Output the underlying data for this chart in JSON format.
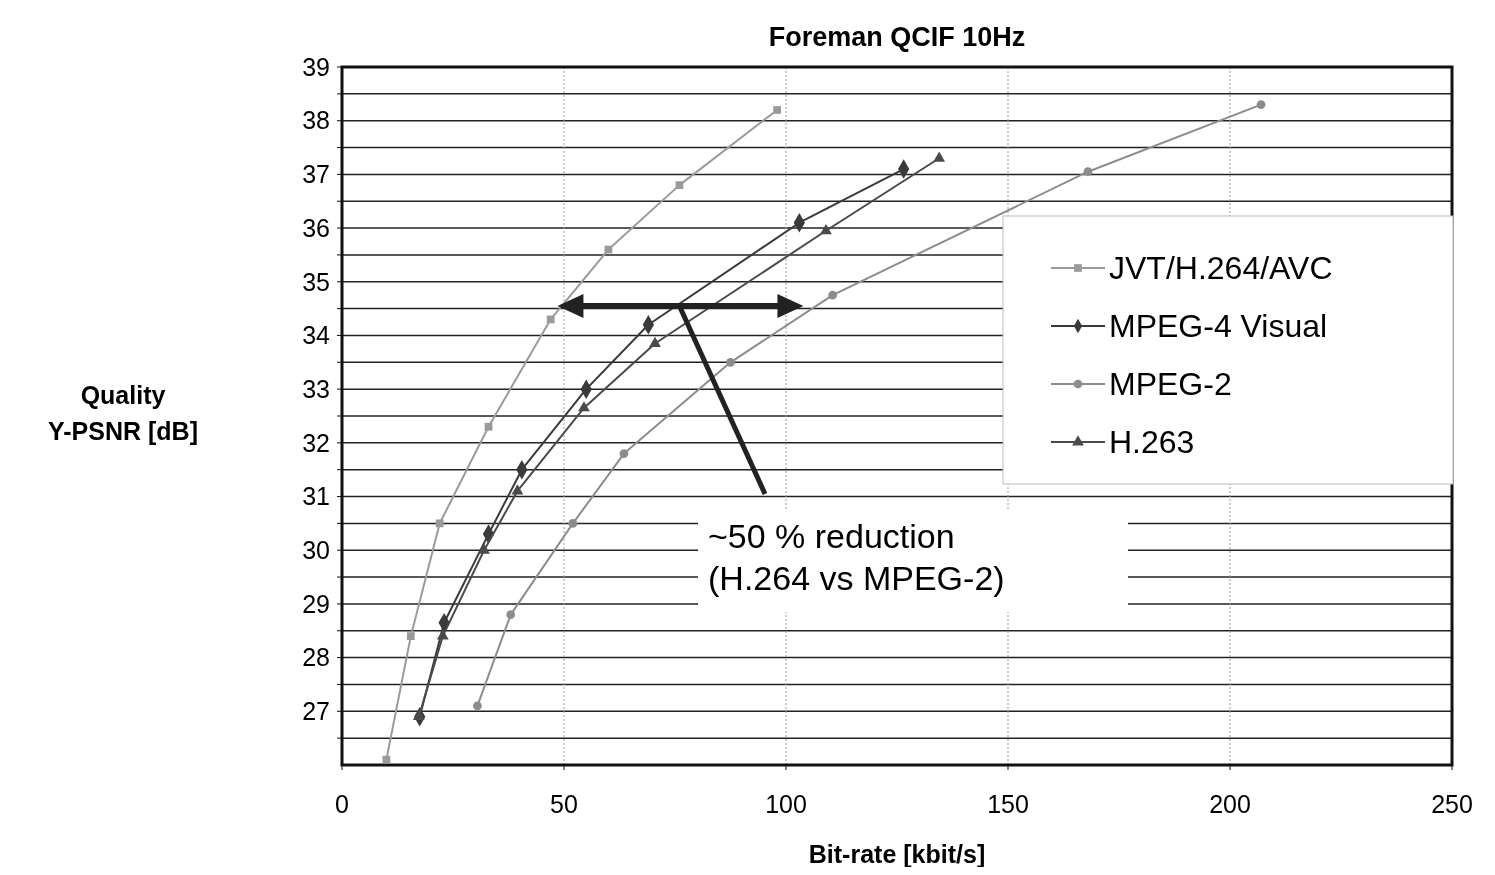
{
  "chart_data": {
    "type": "line",
    "title": "Foreman QCIF 10Hz",
    "xlabel": "Bit-rate [kbit/s]",
    "ylabel": "Quality\nY-PSNR [dB]",
    "xlim": [
      0,
      250
    ],
    "xticks": [
      0,
      50,
      100,
      150,
      200,
      250
    ],
    "ylim": [
      26,
      39
    ],
    "yticks": [
      {
        "value": 26.5,
        "label": null
      },
      27,
      {
        "value": 27.5,
        "label": null
      },
      28,
      {
        "value": 28.5,
        "label": null
      },
      29,
      {
        "value": 29.5,
        "label": null
      },
      30,
      {
        "value": 30.5,
        "label": null
      },
      31,
      {
        "value": 31.5,
        "label": null
      },
      32,
      {
        "value": 32.5,
        "label": null
      },
      33,
      {
        "value": 33.5,
        "label": null
      },
      34,
      {
        "value": 34.5,
        "label": null
      },
      35,
      {
        "value": 35.5,
        "label": null
      },
      36,
      {
        "value": 36.5,
        "label": null
      },
      37,
      {
        "value": 37.5,
        "label": null
      },
      38,
      {
        "value": 38.5,
        "label": null
      },
      39
    ],
    "grid": true,
    "legend": "right",
    "line_style": "solid",
    "series": [
      {
        "name": "JVT/H.264/AVC",
        "color": "#9a9a9a",
        "marker": "square",
        "x": [
          10,
          15.5,
          22,
          33,
          47,
          60,
          76,
          98
        ],
        "values": [
          26.1,
          28.4,
          30.5,
          32.3,
          34.3,
          35.6,
          36.8,
          38.2
        ]
      },
      {
        "name": "MPEG-4 Visual",
        "color": "#3a3a3a",
        "marker": "diamond",
        "x": [
          17.5,
          23,
          33,
          40.5,
          55,
          69,
          103,
          126.5
        ],
        "values": [
          26.9,
          28.65,
          30.3,
          31.5,
          33,
          34.2,
          36.1,
          37.1
        ]
      },
      {
        "name": "MPEG-2",
        "color": "#8c8c8c",
        "marker": "circle",
        "x": [
          30.5,
          38,
          52,
          63.5,
          87.5,
          110.5,
          168,
          207
        ],
        "values": [
          27.1,
          28.8,
          30.5,
          31.8,
          33.5,
          34.75,
          37.05,
          38.3
        ]
      },
      {
        "name": "H.263",
        "color": "#4a4a4a",
        "marker": "triangle",
        "x": [
          17.3,
          22.7,
          32,
          39.5,
          54.5,
          70.5,
          109,
          134.5
        ],
        "values": [
          26.9,
          28.4,
          30,
          31.1,
          32.65,
          33.85,
          35.95,
          37.3
        ]
      }
    ],
    "annotations": [
      {
        "text": "~50 % reduction\n(H.264 vs MPEG-2)",
        "x": 76,
        "y": 34.55
      }
    ]
  }
}
